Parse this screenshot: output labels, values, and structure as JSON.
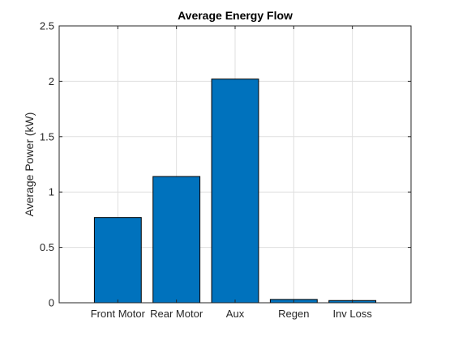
{
  "chart_data": {
    "type": "bar",
    "title": "Average Energy Flow",
    "xlabel": "",
    "ylabel": "Average Power (kW)",
    "categories": [
      "Front Motor",
      "Rear Motor",
      "Aux",
      "Regen",
      "Inv Loss"
    ],
    "values": [
      0.77,
      1.14,
      2.02,
      0.03,
      0.02
    ],
    "ylim": [
      0,
      2.5
    ],
    "yticks": [
      0,
      0.5,
      1,
      1.5,
      2,
      2.5
    ],
    "ytick_labels": [
      "0",
      "0.5",
      "1",
      "1.5",
      "2",
      "2.5"
    ],
    "xlim": [
      0,
      6
    ],
    "grid": true,
    "bar_color": "#0072BD"
  }
}
